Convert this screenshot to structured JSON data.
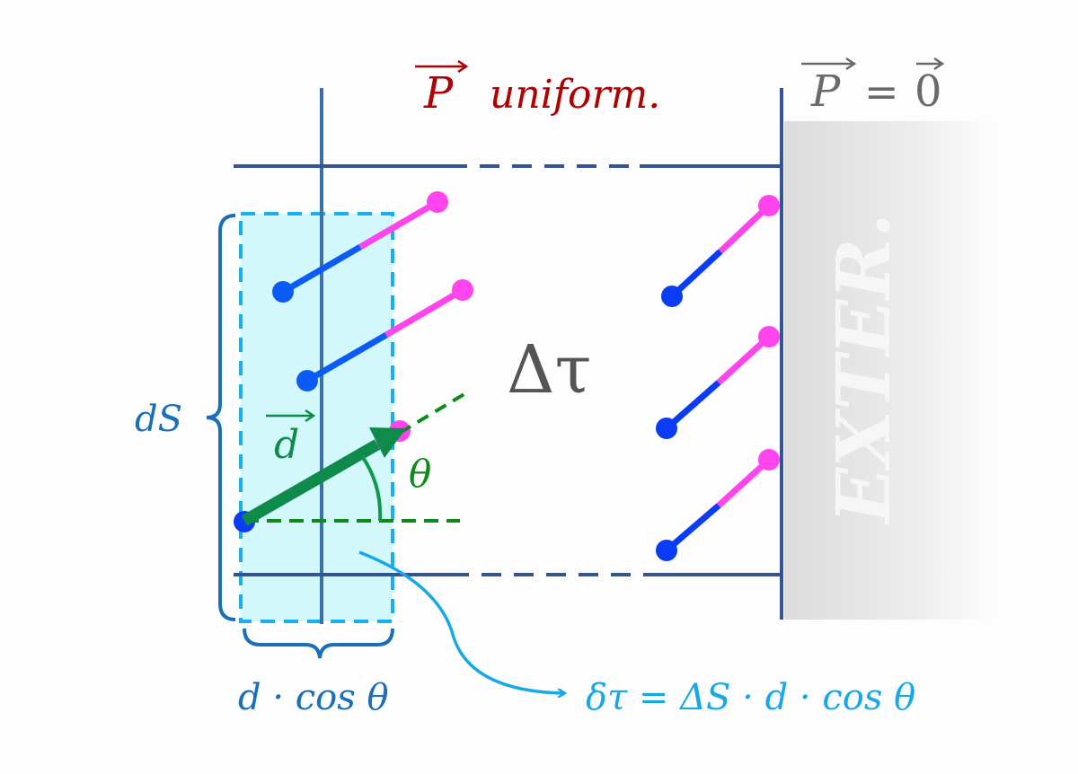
{
  "labels": {
    "p_uniform_symbol": "P",
    "p_uniform_text": "uniform.",
    "p_zero_symbol": "P",
    "p_zero_equals": "=",
    "p_zero_value": "0",
    "exterior": "EXTER.",
    "delta_tau": "Δτ",
    "ds": "dS",
    "d_vector": "d",
    "theta": "θ",
    "d_cos_theta": "d · cos θ",
    "formula": "δτ = ΔS · d · cos θ"
  },
  "colors": {
    "boundary": "#34558f",
    "volume_element_fill": "#d2f8fc",
    "volume_element_stroke": "#18aef0",
    "brace": "#1a6fb8",
    "dipole_negative": "#0a3cf5",
    "dipole_positive": "#ff44ee",
    "d_vector": "#0e8a4a",
    "title_red": "#b00000",
    "gray_text": "#6a6a6a",
    "formula": "#18a8e8"
  }
}
